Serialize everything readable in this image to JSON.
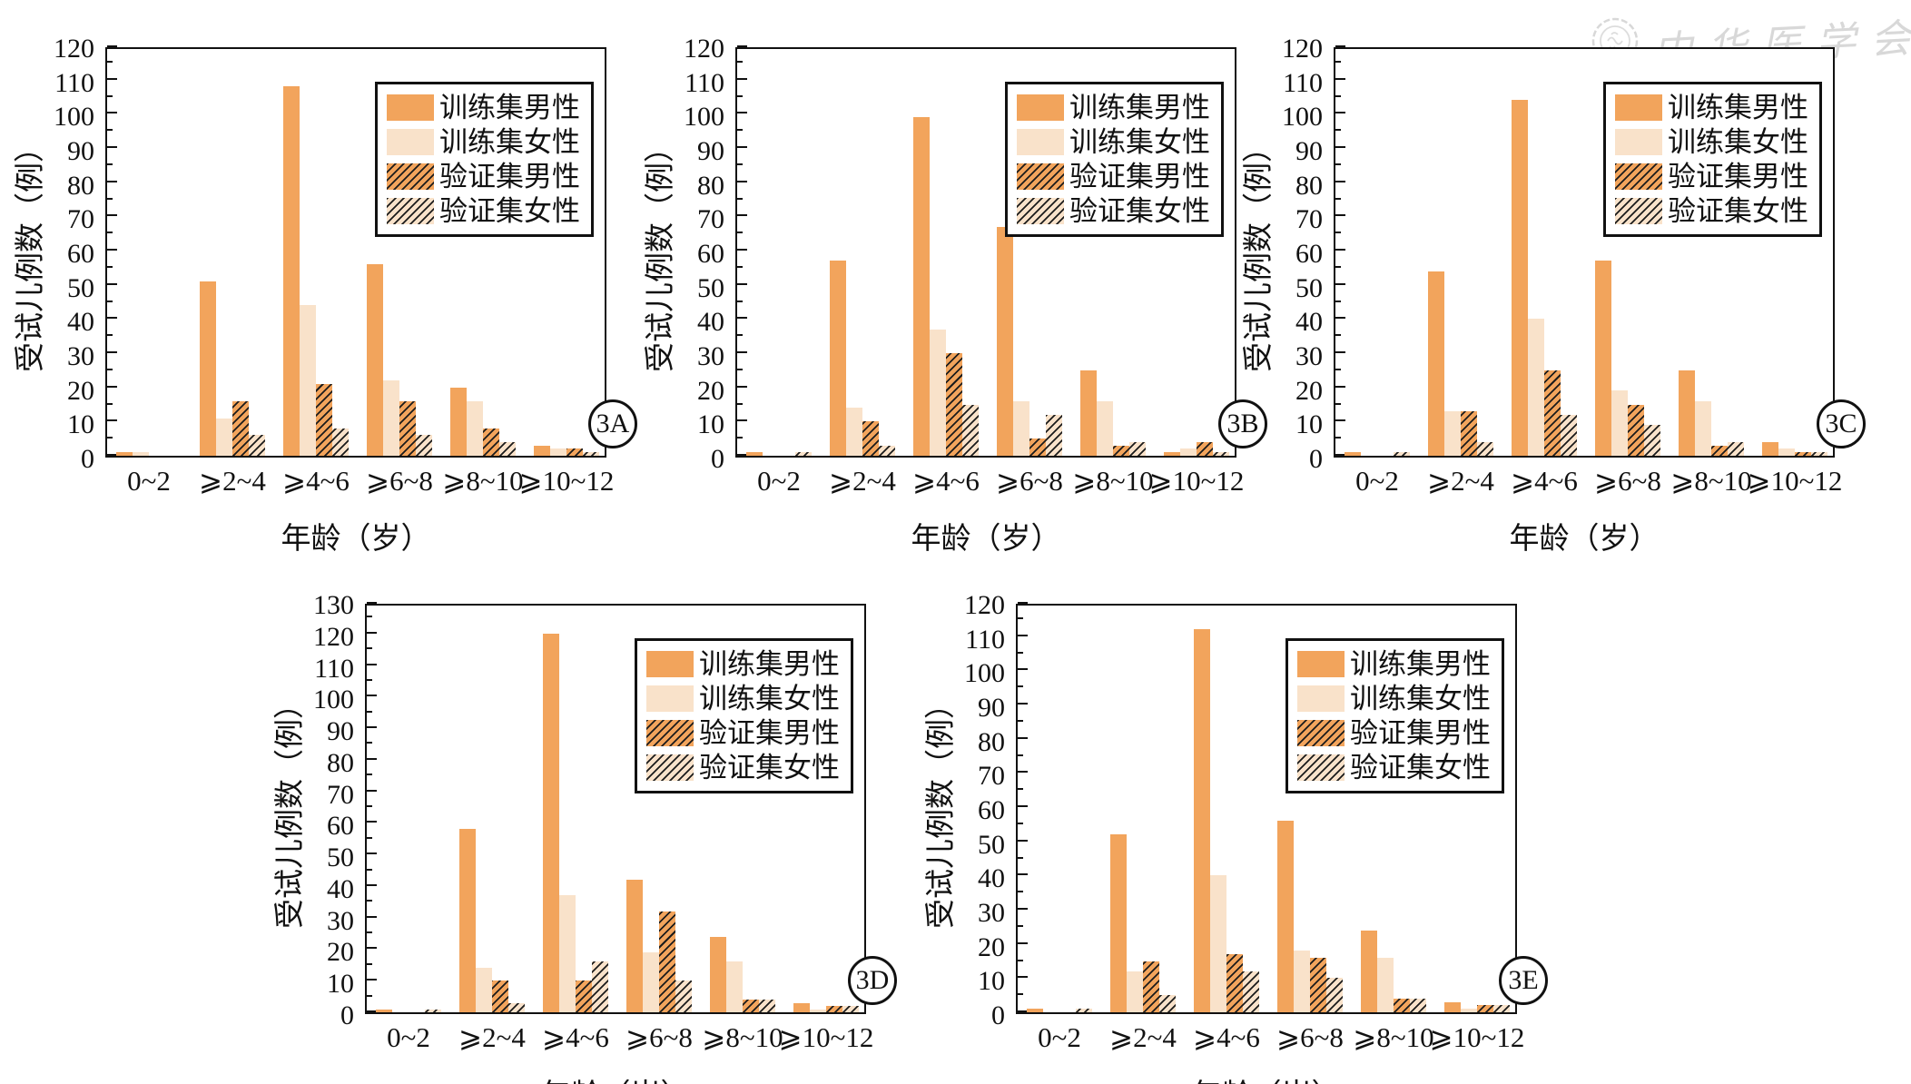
{
  "watermark": {
    "seal_icon": "cma-seal-icon",
    "text": "中华医学会",
    "color": "#d2d2d2"
  },
  "colors": {
    "train_male": "#F2A45C",
    "train_female": "#F9E2CA",
    "hatch_line": "#1c1c1c",
    "axis": "#111111",
    "background": "#ffffff"
  },
  "legend": {
    "position": "upper-right-inside",
    "items": [
      {
        "label": "训练集男性",
        "style": "solid-orange"
      },
      {
        "label": "训练集女性",
        "style": "solid-light"
      },
      {
        "label": "验证集男性",
        "style": "hatch-orange"
      },
      {
        "label": "验证集女性",
        "style": "hatch-light"
      }
    ]
  },
  "chart_data": [
    {
      "type": "bar",
      "badge": "3A",
      "title": "",
      "xlabel": "年龄（岁）",
      "ylabel": "受试儿例数（例）",
      "categories": [
        "0~2",
        "⩾2~4",
        "⩾4~6",
        "⩾6~8",
        "⩾8~10",
        "⩾10~12"
      ],
      "ylim": [
        0,
        120
      ],
      "ytick_major": 10,
      "ytick_minor": 5,
      "grid": false,
      "series": [
        {
          "name": "训练集男性",
          "style": "solid-orange",
          "values": [
            1,
            51,
            108,
            56,
            20,
            3
          ]
        },
        {
          "name": "训练集女性",
          "style": "solid-light",
          "values": [
            1,
            11,
            44,
            22,
            16,
            2
          ]
        },
        {
          "name": "验证集男性",
          "style": "hatch-orange",
          "values": [
            0,
            16,
            21,
            16,
            8,
            2
          ]
        },
        {
          "name": "验证集女性",
          "style": "hatch-light",
          "values": [
            0,
            6,
            8,
            6,
            4,
            1
          ]
        }
      ]
    },
    {
      "type": "bar",
      "badge": "3B",
      "title": "",
      "xlabel": "年龄（岁）",
      "ylabel": "受试儿例数（例）",
      "categories": [
        "0~2",
        "⩾2~4",
        "⩾4~6",
        "⩾6~8",
        "⩾8~10",
        "⩾10~12"
      ],
      "ylim": [
        0,
        120
      ],
      "ytick_major": 10,
      "ytick_minor": 5,
      "grid": false,
      "series": [
        {
          "name": "训练集男性",
          "style": "solid-orange",
          "values": [
            1,
            57,
            99,
            67,
            25,
            1
          ]
        },
        {
          "name": "训练集女性",
          "style": "solid-light",
          "values": [
            0,
            14,
            37,
            16,
            16,
            2
          ]
        },
        {
          "name": "验证集男性",
          "style": "hatch-orange",
          "values": [
            0,
            10,
            30,
            5,
            3,
            4
          ]
        },
        {
          "name": "验证集女性",
          "style": "hatch-light",
          "values": [
            1,
            3,
            15,
            12,
            4,
            1
          ]
        }
      ]
    },
    {
      "type": "bar",
      "badge": "3C",
      "title": "",
      "xlabel": "年龄（岁）",
      "ylabel": "受试儿例数（例）",
      "categories": [
        "0~2",
        "⩾2~4",
        "⩾4~6",
        "⩾6~8",
        "⩾8~10",
        "⩾10~12"
      ],
      "ylim": [
        0,
        120
      ],
      "ytick_major": 10,
      "ytick_minor": 5,
      "grid": false,
      "series": [
        {
          "name": "训练集男性",
          "style": "solid-orange",
          "values": [
            1,
            54,
            104,
            57,
            25,
            4
          ]
        },
        {
          "name": "训练集女性",
          "style": "solid-light",
          "values": [
            0,
            13,
            40,
            19,
            16,
            2
          ]
        },
        {
          "name": "验证集男性",
          "style": "hatch-orange",
          "values": [
            0,
            13,
            25,
            15,
            3,
            1
          ]
        },
        {
          "name": "验证集女性",
          "style": "hatch-light",
          "values": [
            1,
            4,
            12,
            9,
            4,
            1
          ]
        }
      ]
    },
    {
      "type": "bar",
      "badge": "3D",
      "title": "",
      "xlabel": "年龄（岁）",
      "ylabel": "受试儿例数（例）",
      "categories": [
        "0~2",
        "⩾2~4",
        "⩾4~6",
        "⩾6~8",
        "⩾8~10",
        "⩾10~12"
      ],
      "ylim": [
        0,
        130
      ],
      "ytick_major": 10,
      "ytick_minor": 5,
      "grid": false,
      "series": [
        {
          "name": "训练集男性",
          "style": "solid-orange",
          "values": [
            1,
            58,
            120,
            42,
            24,
            3
          ]
        },
        {
          "name": "训练集女性",
          "style": "solid-light",
          "values": [
            0,
            14,
            37,
            19,
            16,
            1
          ]
        },
        {
          "name": "验证集男性",
          "style": "hatch-orange",
          "values": [
            0,
            10,
            10,
            32,
            4,
            2
          ]
        },
        {
          "name": "验证集女性",
          "style": "hatch-light",
          "values": [
            1,
            3,
            16,
            10,
            4,
            2
          ]
        }
      ]
    },
    {
      "type": "bar",
      "badge": "3E",
      "title": "",
      "xlabel": "年龄（岁）",
      "ylabel": "受试儿例数（例）",
      "categories": [
        "0~2",
        "⩾2~4",
        "⩾4~6",
        "⩾6~8",
        "⩾8~10",
        "⩾10~12"
      ],
      "ylim": [
        0,
        120
      ],
      "ytick_major": 10,
      "ytick_minor": 5,
      "grid": false,
      "series": [
        {
          "name": "训练集男性",
          "style": "solid-orange",
          "values": [
            1,
            52,
            112,
            56,
            24,
            3
          ]
        },
        {
          "name": "训练集女性",
          "style": "solid-light",
          "values": [
            0,
            12,
            40,
            18,
            16,
            1
          ]
        },
        {
          "name": "验证集男性",
          "style": "hatch-orange",
          "values": [
            0,
            15,
            17,
            16,
            4,
            2
          ]
        },
        {
          "name": "验证集女性",
          "style": "hatch-light",
          "values": [
            1,
            5,
            12,
            10,
            4,
            2
          ]
        }
      ]
    }
  ]
}
